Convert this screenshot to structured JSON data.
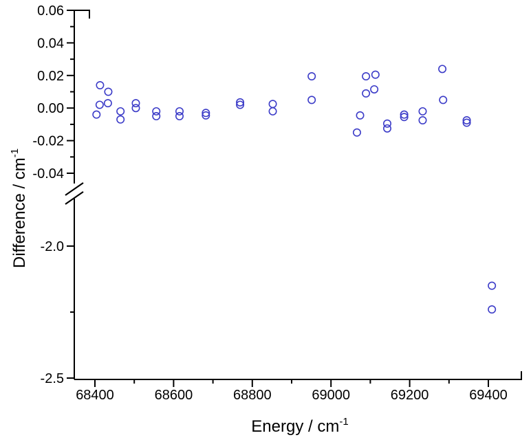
{
  "chart_data": {
    "type": "scatter",
    "title": "",
    "xlabel": {
      "base": "Energy / cm",
      "sup": "-1"
    },
    "ylabel": {
      "base": "Difference / cm",
      "sup": "-1"
    },
    "legend": "none",
    "grid": false,
    "axis_break": {
      "axis": "y",
      "between": [
        -0.052,
        -1.93
      ]
    },
    "x_axis": {
      "min": 68348,
      "max": 69487,
      "major_ticks": [
        {
          "value": 68400,
          "label": "68400"
        },
        {
          "value": 68600,
          "label": "68600"
        },
        {
          "value": 68800,
          "label": "68800"
        },
        {
          "value": 69000,
          "label": "69000"
        },
        {
          "value": 69200,
          "label": "69200"
        },
        {
          "value": 69400,
          "label": "69400"
        }
      ],
      "minor_ticks": [
        68500,
        68700,
        68900,
        69100,
        69300
      ]
    },
    "y_axis_upper": {
      "min": -0.052,
      "max": 0.06,
      "major_ticks": [
        {
          "value": 0.06,
          "label": "0.06"
        },
        {
          "value": 0.04,
          "label": "0.04"
        },
        {
          "value": 0.02,
          "label": "0.02"
        },
        {
          "value": 0.0,
          "label": "0.00"
        },
        {
          "value": -0.02,
          "label": "-0.02"
        },
        {
          "value": -0.04,
          "label": "-0.04"
        }
      ],
      "minor_ticks": [
        0.05,
        0.03,
        0.01,
        -0.01,
        -0.03
      ]
    },
    "y_axis_lower": {
      "min": -2.505,
      "max": -1.93,
      "major_ticks": [
        {
          "value": -2.0,
          "label": "-2.0"
        },
        {
          "value": -2.5,
          "label": "-2.5"
        }
      ],
      "minor_ticks": [
        -2.25
      ]
    },
    "series": [
      {
        "name": "difference",
        "marker": "open-circle",
        "color": "#3c3cc8",
        "points_upper": [
          [
            68404,
            -0.004
          ],
          [
            68413,
            0.014
          ],
          [
            68412,
            0.002
          ],
          [
            68434,
            0.01
          ],
          [
            68433,
            0.003
          ],
          [
            68465,
            -0.002
          ],
          [
            68465,
            -0.007
          ],
          [
            68504,
            0.003
          ],
          [
            68504,
            0.0
          ],
          [
            68556,
            -0.002
          ],
          [
            68556,
            -0.005
          ],
          [
            68615,
            -0.002
          ],
          [
            68615,
            -0.005
          ],
          [
            68682,
            -0.003
          ],
          [
            68682,
            -0.0045
          ],
          [
            68769,
            0.0035
          ],
          [
            68769,
            0.002
          ],
          [
            68852,
            0.0025
          ],
          [
            68852,
            -0.002
          ],
          [
            68951,
            0.0195
          ],
          [
            68951,
            0.005
          ],
          [
            69066,
            -0.015
          ],
          [
            69074,
            -0.0045
          ],
          [
            69089,
            0.0195
          ],
          [
            69089,
            0.009
          ],
          [
            69110,
            0.0115
          ],
          [
            69113,
            0.0205
          ],
          [
            69143,
            -0.0095
          ],
          [
            69143,
            -0.0125
          ],
          [
            69186,
            -0.004
          ],
          [
            69186,
            -0.0055
          ],
          [
            69233,
            -0.002
          ],
          [
            69233,
            -0.0075
          ],
          [
            69283,
            0.024
          ],
          [
            69285,
            0.005
          ],
          [
            69345,
            -0.0075
          ],
          [
            69345,
            -0.009
          ]
        ],
        "points_lower": [
          [
            69409,
            -2.15
          ],
          [
            69409,
            -2.24
          ]
        ]
      }
    ]
  }
}
